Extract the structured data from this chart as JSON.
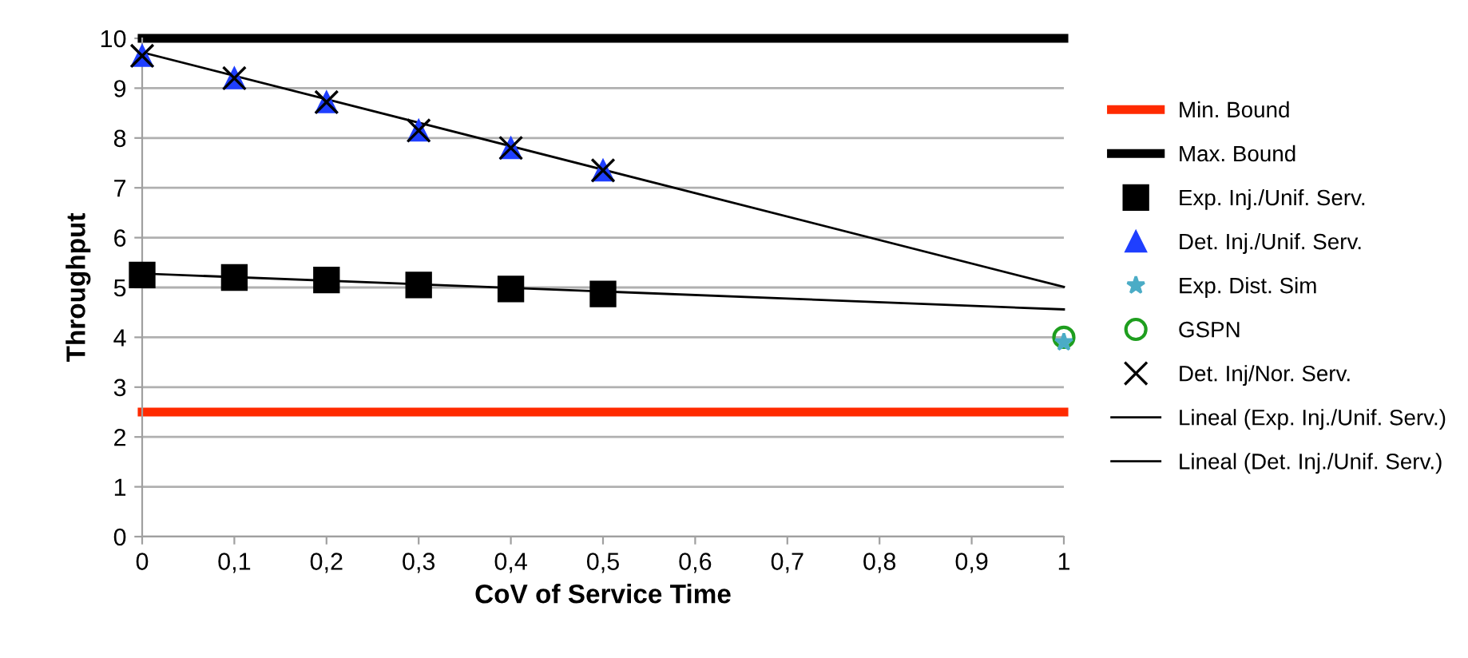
{
  "chart_data": {
    "type": "scatter",
    "xlabel": "CoV of Service Time",
    "ylabel": "Throughput",
    "xlim": [
      0,
      1
    ],
    "ylim": [
      0,
      10
    ],
    "xticks": [
      0,
      {
        "value": 0.1,
        "label": "0,1"
      },
      {
        "value": 0.2,
        "label": "0,2"
      },
      {
        "value": 0.3,
        "label": "0,3"
      },
      {
        "value": 0.4,
        "label": "0,4"
      },
      {
        "value": 0.5,
        "label": "0,5"
      },
      {
        "value": 0.6,
        "label": "0,6"
      },
      {
        "value": 0.7,
        "label": "0,7"
      },
      {
        "value": 0.8,
        "label": "0,8"
      },
      {
        "value": 0.9,
        "label": "0,9"
      },
      1
    ],
    "yticks": [
      0,
      1,
      2,
      3,
      4,
      5,
      6,
      7,
      8,
      9,
      10
    ],
    "grid": "y",
    "legend": "right",
    "series": [
      {
        "name": "Min. Bound",
        "type": "line",
        "color": "#ff2a00",
        "x": [
          0,
          1
        ],
        "values": [
          2.5,
          2.5
        ],
        "line_style": "solid",
        "marker": "none"
      },
      {
        "name": "Max. Bound",
        "type": "line",
        "color": "#000000",
        "x": [
          0,
          1
        ],
        "values": [
          10,
          10
        ],
        "line_style": "solid",
        "marker": "none"
      },
      {
        "name": "Exp. Inj./Unif. Serv.",
        "color": "#000000",
        "marker": "square",
        "x": [
          0,
          0.1,
          0.2,
          0.3,
          0.4,
          0.5
        ],
        "values": [
          5.25,
          5.2,
          5.15,
          5.05,
          4.97,
          4.87
        ]
      },
      {
        "name": "Det. Inj./Unif. Serv.",
        "color": "#1f3fff",
        "marker": "triangle",
        "x": [
          0,
          0.1,
          0.2,
          0.3,
          0.4,
          0.5
        ],
        "values": [
          9.65,
          9.2,
          8.72,
          8.15,
          7.8,
          7.35
        ]
      },
      {
        "name": "Exp. Dist. Sim",
        "color": "#4bacc6",
        "marker": "star",
        "x": [
          1
        ],
        "values": [
          3.9
        ]
      },
      {
        "name": "GSPN",
        "color": "#1e9e1e",
        "marker": "circle",
        "x": [
          1
        ],
        "values": [
          4.0
        ]
      },
      {
        "name": "Det. Inj/Nor. Serv.",
        "color": "#000000",
        "marker": "cross",
        "x": [
          0,
          0.1,
          0.2,
          0.3,
          0.4,
          0.5
        ],
        "values": [
          9.65,
          9.2,
          8.72,
          8.15,
          7.8,
          7.35
        ]
      },
      {
        "name": "Lineal (Exp. Inj./Unif. Serv.)",
        "type": "line",
        "color": "#000000",
        "x": [
          0,
          1
        ],
        "values": [
          5.28,
          4.56
        ],
        "line_style": "solid",
        "marker": "none"
      },
      {
        "name": "Lineal (Det. Inj./Unif. Serv.)",
        "type": "line",
        "color": "#000000",
        "x": [
          0,
          1
        ],
        "values": [
          9.72,
          5.01
        ],
        "line_style": "solid",
        "marker": "none"
      }
    ]
  }
}
